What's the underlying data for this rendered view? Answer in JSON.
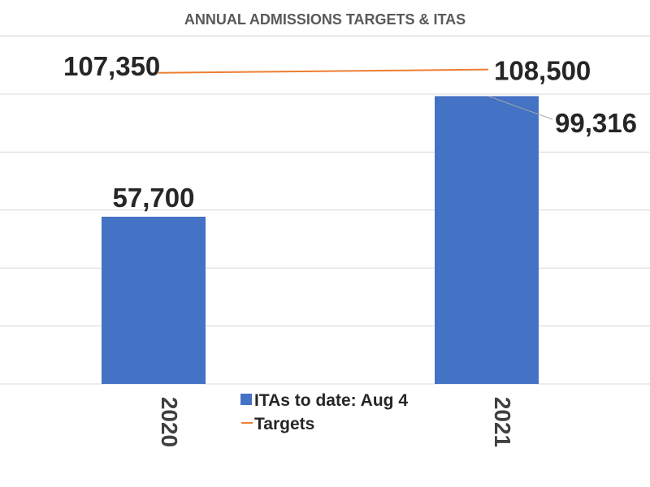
{
  "chart_data": {
    "type": "bar",
    "title": "ANNUAL ADMISSIONS TARGETS & ITAS",
    "categories": [
      "2020",
      "2021"
    ],
    "xlabel": "",
    "ylabel": "",
    "ylim": [
      0,
      125000
    ],
    "grid": true,
    "legend_position": "bottom",
    "series": [
      {
        "name": "ITAs to date: Aug 4",
        "type": "bar",
        "color": "#4472C4",
        "values": [
          57700,
          99316
        ],
        "labels": [
          "57,700",
          "99,316"
        ]
      },
      {
        "name": "Targets",
        "type": "line",
        "color": "#ED7D31",
        "values": [
          107350,
          108500
        ],
        "labels": [
          "107,350",
          "108,500"
        ]
      }
    ]
  }
}
